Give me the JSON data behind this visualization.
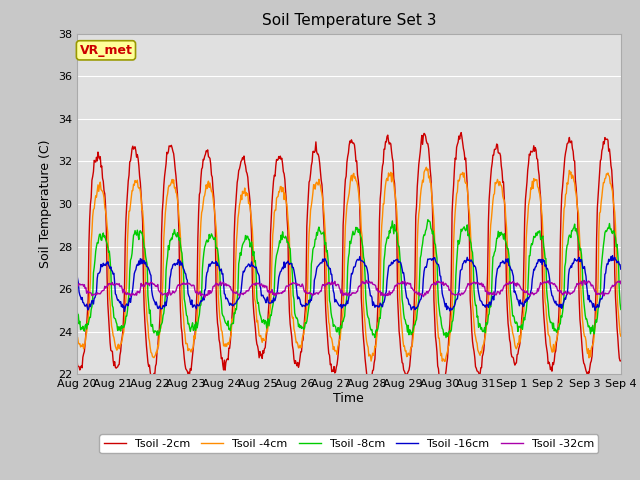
{
  "title": "Soil Temperature Set 3",
  "xlabel": "Time",
  "ylabel": "Soil Temperature (C)",
  "ylim": [
    22,
    38
  ],
  "yticks": [
    22,
    24,
    26,
    28,
    30,
    32,
    34,
    36,
    38
  ],
  "fig_bg_color": "#c8c8c8",
  "plot_bg_color": "#e0e0e0",
  "grid_color": "#ffffff",
  "series_colors": {
    "Tsoil -2cm": "#cc0000",
    "Tsoil -4cm": "#ff8c00",
    "Tsoil -8cm": "#00cc00",
    "Tsoil -16cm": "#0000cc",
    "Tsoil -32cm": "#aa00aa"
  },
  "annotation": "VR_met",
  "annotation_color": "#cc0000",
  "annotation_bg": "#ffff99",
  "annotation_border": "#999900",
  "n_days": 15,
  "n_points": 720,
  "tick_labels": [
    "Aug 20",
    "Aug 21",
    "Aug 22",
    "Aug 23",
    "Aug 24",
    "Aug 25",
    "Aug 26",
    "Aug 27",
    "Aug 28",
    "Aug 29",
    "Aug 30",
    "Aug 31",
    "Sep 1",
    "Sep 2",
    "Sep 3",
    "Sep 4"
  ]
}
